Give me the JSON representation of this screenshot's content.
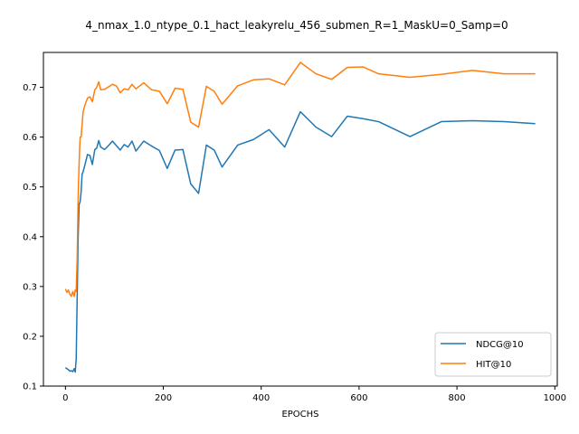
{
  "chart_data": {
    "type": "line",
    "title": "4_nmax_1.0_ntype_0.1_hact_leakyrelu_456_submen_R=1_MaskU=0_Samp=0",
    "xlabel": "EPOCHS",
    "ylabel": "",
    "xlim": [
      -45,
      1005
    ],
    "ylim": [
      0.1,
      0.77
    ],
    "xticks": [
      0,
      200,
      400,
      600,
      800,
      1000
    ],
    "yticks": [
      0.1,
      0.2,
      0.3,
      0.4,
      0.5,
      0.6,
      0.7
    ],
    "grid": false,
    "legend_position": "lower-right",
    "series": [
      {
        "name": "NDCG@10",
        "color": "#1f77b4",
        "x": [
          0,
          3,
          6,
          9,
          12,
          15,
          18,
          20,
          22,
          24,
          26,
          28,
          30,
          32,
          34,
          36,
          40,
          45,
          50,
          55,
          60,
          64,
          68,
          72,
          80,
          90,
          96,
          104,
          112,
          120,
          128,
          136,
          144,
          160,
          176,
          192,
          208,
          224,
          240,
          256,
          272,
          288,
          304,
          320,
          352,
          384,
          416,
          448,
          480,
          512,
          544,
          576,
          608,
          640,
          704,
          768,
          832,
          896,
          960
        ],
        "y": [
          0.137,
          0.135,
          0.133,
          0.13,
          0.131,
          0.129,
          0.135,
          0.128,
          0.155,
          0.28,
          0.4,
          0.465,
          0.47,
          0.49,
          0.525,
          0.53,
          0.545,
          0.565,
          0.563,
          0.545,
          0.575,
          0.578,
          0.593,
          0.58,
          0.575,
          0.585,
          0.592,
          0.583,
          0.574,
          0.585,
          0.58,
          0.592,
          0.572,
          0.592,
          0.582,
          0.573,
          0.537,
          0.574,
          0.575,
          0.506,
          0.487,
          0.584,
          0.574,
          0.54,
          0.584,
          0.595,
          0.615,
          0.58,
          0.651,
          0.62,
          0.601,
          0.642,
          0.637,
          0.631,
          0.601,
          0.631,
          0.633,
          0.631,
          0.627
        ]
      },
      {
        "name": "HIT@10",
        "color": "#ff7f0e",
        "x": [
          0,
          3,
          6,
          9,
          12,
          15,
          18,
          20,
          22,
          24,
          26,
          28,
          30,
          32,
          34,
          36,
          40,
          45,
          50,
          55,
          60,
          64,
          68,
          72,
          80,
          90,
          96,
          104,
          112,
          120,
          128,
          136,
          144,
          160,
          176,
          192,
          208,
          224,
          240,
          256,
          272,
          288,
          304,
          320,
          352,
          384,
          416,
          448,
          480,
          512,
          544,
          576,
          608,
          640,
          704,
          768,
          832,
          896,
          960
        ],
        "y": [
          0.295,
          0.288,
          0.293,
          0.285,
          0.28,
          0.29,
          0.28,
          0.293,
          0.29,
          0.36,
          0.48,
          0.55,
          0.6,
          0.6,
          0.625,
          0.65,
          0.665,
          0.678,
          0.681,
          0.671,
          0.695,
          0.7,
          0.711,
          0.695,
          0.696,
          0.702,
          0.706,
          0.703,
          0.689,
          0.697,
          0.695,
          0.706,
          0.697,
          0.709,
          0.695,
          0.692,
          0.667,
          0.698,
          0.696,
          0.63,
          0.62,
          0.702,
          0.692,
          0.666,
          0.703,
          0.715,
          0.717,
          0.705,
          0.75,
          0.727,
          0.716,
          0.74,
          0.741,
          0.727,
          0.72,
          0.726,
          0.734,
          0.727,
          0.727
        ]
      }
    ]
  }
}
